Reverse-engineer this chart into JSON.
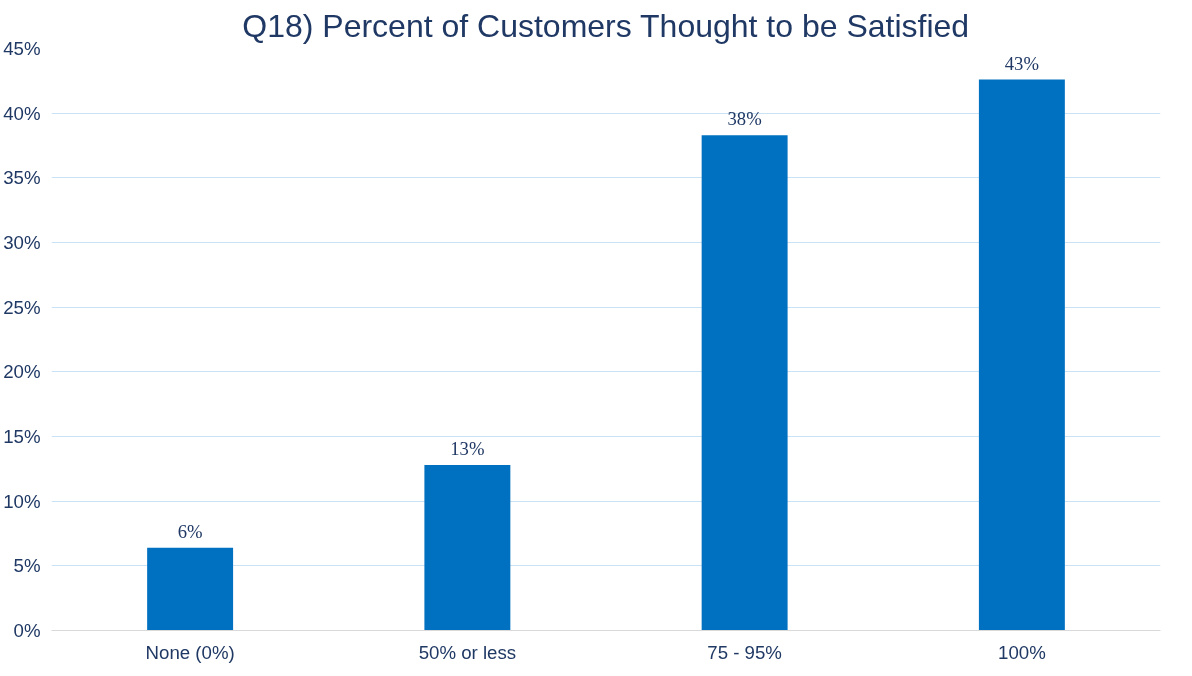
{
  "chart_data": {
    "type": "bar",
    "title": "Q18) Percent of Customers Thought to be Satisfied",
    "categories": [
      "None (0%)",
      "50% or less",
      "75 - 95%",
      "100%"
    ],
    "values": [
      6.4,
      12.8,
      38.3,
      42.6
    ],
    "value_labels": [
      "6%",
      "13%",
      "38%",
      "43%"
    ],
    "color": "#0070c0",
    "ylim": [
      0,
      45
    ],
    "yticks": [
      {
        "value": 0,
        "label": "0%"
      },
      {
        "value": 5,
        "label": "5%"
      },
      {
        "value": 10,
        "label": "10%"
      },
      {
        "value": 15,
        "label": "15%"
      },
      {
        "value": 20,
        "label": "20%"
      },
      {
        "value": 25,
        "label": "25%"
      },
      {
        "value": 30,
        "label": "30%"
      },
      {
        "value": 35,
        "label": "35%"
      },
      {
        "value": 40,
        "label": "40%"
      },
      {
        "value": 45,
        "label": "45%"
      }
    ],
    "grid": "y"
  }
}
